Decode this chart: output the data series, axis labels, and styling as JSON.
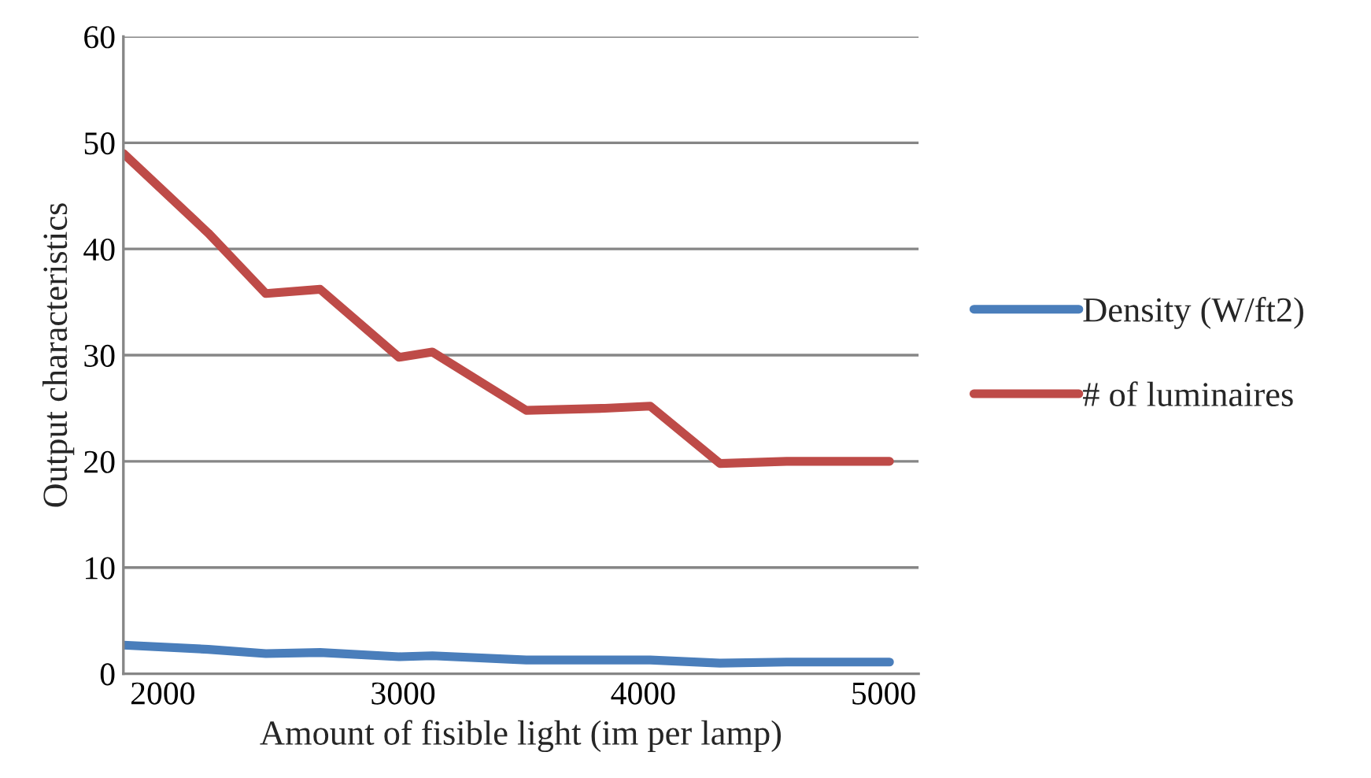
{
  "chart_data": {
    "type": "line",
    "xlabel": "Amount of fisible light (im per lamp)",
    "ylabel": "Output characteristics",
    "x": [
      1836,
      2189,
      2429,
      2655,
      2983,
      3122,
      3513,
      3840,
      4029,
      4319,
      4597,
      5025
    ],
    "series": [
      {
        "name": "Density (W/ft2)",
        "color": "#4a7ebb",
        "values": [
          2.7,
          2.3,
          1.9,
          2.0,
          1.6,
          1.7,
          1.3,
          1.3,
          1.3,
          1.0,
          1.1,
          1.1
        ]
      },
      {
        "name": "# of luminaires",
        "color": "#be4b48",
        "values": [
          49,
          41.5,
          35.8,
          36.2,
          29.8,
          30.3,
          24.8,
          25,
          25.2,
          19.8,
          20,
          20
        ]
      }
    ],
    "xlim": [
      1836,
      5146
    ],
    "xticks": [
      2000,
      3000,
      4000,
      5000
    ],
    "ylim": [
      0,
      60
    ],
    "yticks": [
      0,
      10,
      20,
      30,
      40,
      50,
      60
    ],
    "grid": "y",
    "legend": "right",
    "marker": "none",
    "line_style": "solid"
  }
}
